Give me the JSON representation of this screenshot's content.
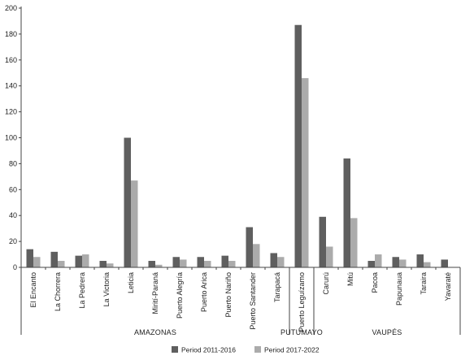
{
  "chart_data": {
    "type": "bar",
    "categories": [
      "El Encanto",
      "La Chorrera",
      "La Pedrera",
      "La Victoria",
      "Leticia",
      "Mirití-Paraná",
      "Puerto Alegría",
      "Puerto Arica",
      "Puerto Nariño",
      "Puerto Santander",
      "Tarapacá",
      "Puerto Leguízamo",
      "Carurú",
      "Mitú",
      "Pacoa",
      "Papunaua",
      "Taraira",
      "Yavaraté"
    ],
    "groups": [
      {
        "name": "AMAZONAS",
        "start": 0,
        "end": 10
      },
      {
        "name": "PUTUMAYO",
        "start": 11,
        "end": 11
      },
      {
        "name": "VAUPÉS",
        "start": 12,
        "end": 17
      }
    ],
    "series": [
      {
        "name": "Period 2011-2016",
        "color": "#5f5f5f",
        "values": [
          14,
          12,
          9,
          5,
          100,
          5,
          8,
          8,
          9,
          31,
          11,
          187,
          39,
          84,
          5,
          8,
          10,
          6
        ]
      },
      {
        "name": "Period 2017-2022",
        "color": "#ababab",
        "values": [
          8,
          5,
          10,
          3,
          67,
          2,
          6,
          5,
          5,
          18,
          8,
          146,
          16,
          38,
          10,
          6,
          4,
          null
        ]
      }
    ],
    "yticks": [
      0,
      20,
      40,
      60,
      80,
      100,
      120,
      140,
      160,
      180,
      200
    ],
    "ylim": [
      0,
      200
    ],
    "title": "",
    "xlabel": "",
    "ylabel": "",
    "legend_position": "bottom-center",
    "grid": false
  }
}
